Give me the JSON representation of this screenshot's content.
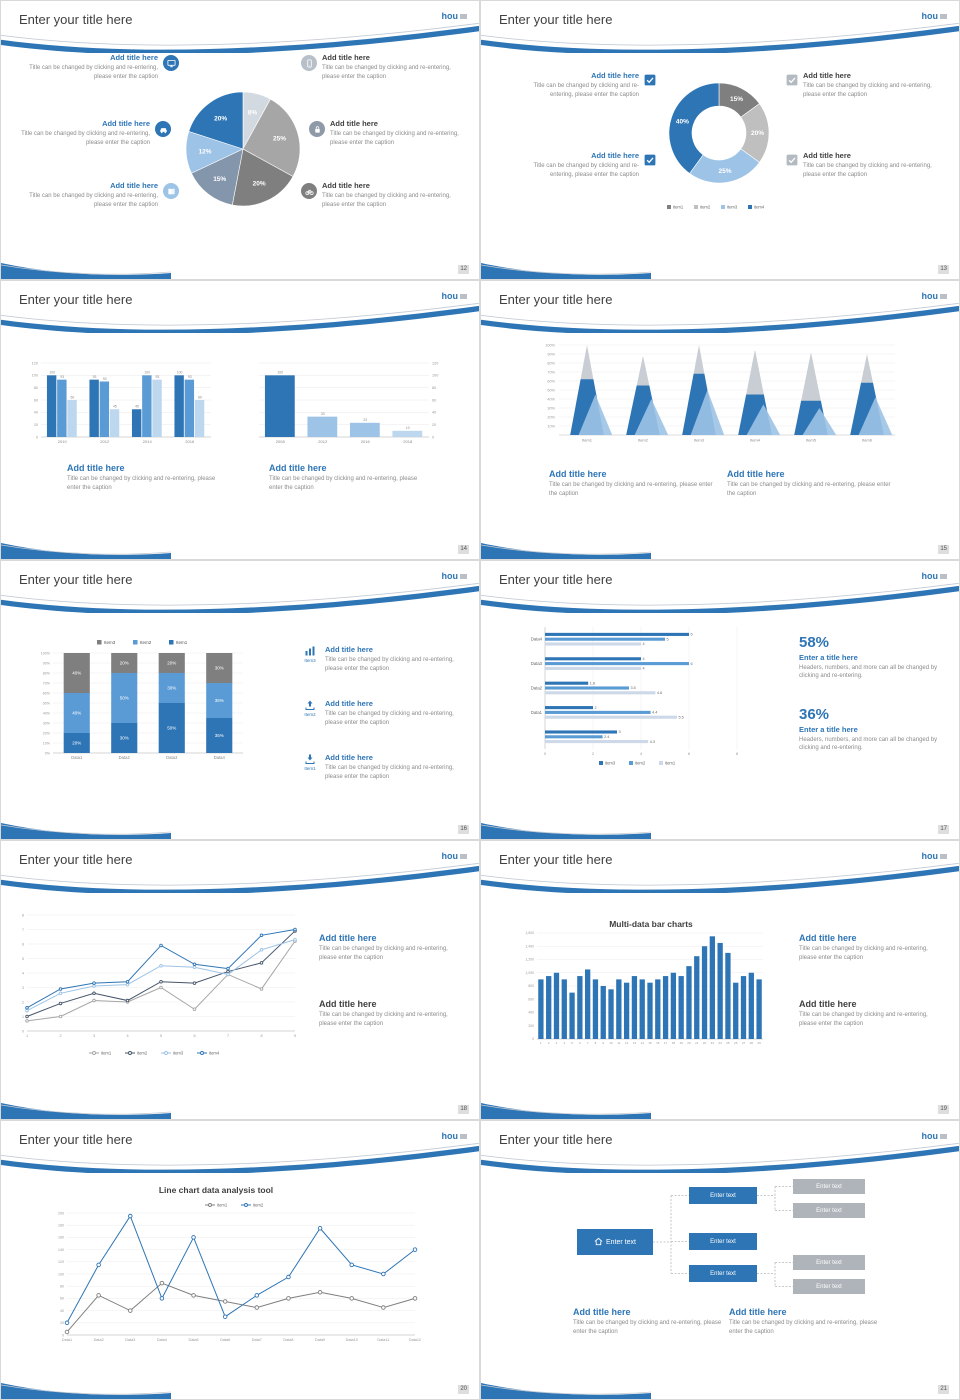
{
  "colors": {
    "accent": "#2e75b6",
    "accent_medium": "#5b9bd5",
    "accent_light": "#9dc3e6",
    "gray": "#7f7f7f",
    "light_gray": "#bfbfbf"
  },
  "common": {
    "title": "Enter your title here",
    "logo": "hou",
    "add_title": "Add title here",
    "caption": "Title can be changed by clicking and re-entering, please enter the caption"
  },
  "icons": {
    "s12": [
      "monitor",
      "phone",
      "car",
      "lock",
      "book",
      "bicycle"
    ],
    "s13": [
      "checkbox-checked"
    ],
    "s16": [
      "bar-chart",
      "upload",
      "download"
    ],
    "s21": [
      "home"
    ]
  },
  "slides": {
    "s12": {
      "page": "12"
    },
    "s13": {
      "page": "13"
    },
    "s14": {
      "page": "14"
    },
    "s15": {
      "page": "15"
    },
    "s16": {
      "page": "16",
      "icon_labels": [
        "Item3",
        "Item2",
        "Item1"
      ]
    },
    "s17": {
      "page": "17",
      "stat1": "58%",
      "stat2": "36%",
      "stat_title": "Enter a title here",
      "stat_caption": "Headers, numbers, and more can all be changed by clicking and re-entering."
    },
    "s18": {
      "page": "18"
    },
    "s19": {
      "page": "19"
    },
    "s20": {
      "page": "20"
    },
    "s21": {
      "page": "21",
      "node_text": "Enter text"
    }
  },
  "chart_data": [
    {
      "id": "c-pie",
      "type": "pie",
      "slide_page": "12",
      "values": [
        8,
        25,
        20,
        15,
        12,
        20
      ],
      "labels": [
        "8%",
        "25%",
        "20%",
        "15%",
        "12%",
        "20%"
      ],
      "colors": [
        "#d3d9e0",
        "#a6a6a6",
        "#7f7f7f",
        "#8496ab",
        "#9dc3e6",
        "#2e75b6"
      ]
    },
    {
      "id": "c-donut",
      "type": "pie",
      "slide_page": "13",
      "donut": true,
      "values": [
        15,
        20,
        25,
        40
      ],
      "labels": [
        "15%",
        "20%",
        "25%",
        "40%"
      ],
      "colors": [
        "#7f7f7f",
        "#bfbfbf",
        "#9dc3e6",
        "#2e75b6"
      ],
      "legend": [
        "item1",
        "item2",
        "item3",
        "item4"
      ]
    },
    {
      "id": "c-bars-grouped",
      "type": "bar",
      "slide_page": "14",
      "categories": [
        "2010",
        "2012",
        "2014",
        "2016"
      ],
      "series": [
        {
          "name": "series1",
          "color": "#2e75b6",
          "values": [
            100,
            93,
            45,
            100
          ]
        },
        {
          "name": "series2",
          "color": "#5b9bd5",
          "values": [
            93,
            90,
            100,
            93
          ]
        },
        {
          "name": "series3",
          "color": "#bdd7ee",
          "values": [
            60,
            45,
            93,
            60
          ]
        }
      ],
      "ylim": [
        0,
        120
      ],
      "ytick_step": 20,
      "data_labels": true
    },
    {
      "id": "c-bars-single",
      "type": "bar",
      "slide_page": "14",
      "categories": [
        "2008",
        "2012",
        "2016",
        "2018"
      ],
      "series": [
        {
          "name": "series1",
          "colors": [
            "#2e75b6",
            "#9dc3e6",
            "#9dc3e6",
            "#bdd7ee"
          ],
          "values": [
            100,
            33,
            23,
            10
          ]
        }
      ],
      "ylim": [
        0,
        120
      ],
      "ytick_step": 20,
      "axis_side": "right",
      "data_labels": true
    },
    {
      "id": "c-cones",
      "type": "bar",
      "variant": "cone-3d",
      "slide_page": "15",
      "categories": [
        "Item1",
        "Item2",
        "Item3",
        "Item4",
        "Item5",
        "Item6"
      ],
      "series": [
        {
          "name": "cone-back-gray",
          "color": "#c9ced4",
          "values": [
            100,
            88,
            100,
            95,
            92,
            90
          ]
        },
        {
          "name": "cone-blue",
          "color": "#2e75b6",
          "values": [
            62,
            55,
            68,
            45,
            38,
            58
          ]
        },
        {
          "name": "cone-front-light",
          "color": "#9dc3e6",
          "values": [
            45,
            40,
            50,
            34,
            30,
            42
          ]
        }
      ],
      "ylim": [
        0,
        100
      ],
      "ytick_step": 10,
      "ytick_suffix": "%"
    },
    {
      "id": "c-stacked",
      "type": "bar",
      "variant": "stacked-100",
      "slide_page": "16",
      "categories": [
        "Data1",
        "Data2",
        "Data3",
        "Data4"
      ],
      "series": [
        {
          "name": "Item1",
          "color": "#2e75b6",
          "values": [
            20,
            30,
            50,
            35
          ]
        },
        {
          "name": "Item2",
          "color": "#5b9bd5",
          "values": [
            40,
            50,
            30,
            35
          ]
        },
        {
          "name": "Item3",
          "color": "#7f7f7f",
          "values": [
            40,
            20,
            20,
            30
          ]
        }
      ],
      "legend": [
        "Item3",
        "Item2",
        "Item1"
      ],
      "legend_colors": [
        "#7f7f7f",
        "#5b9bd5",
        "#2e75b6"
      ],
      "ylim": [
        0,
        100
      ],
      "ytick_step": 10,
      "ytick_suffix": "%"
    },
    {
      "id": "c-hbars",
      "type": "bar",
      "variant": "horizontal",
      "slide_page": "17",
      "categories": [
        "Data4",
        "Data3",
        "Data2",
        "Data1",
        ""
      ],
      "groups": [
        [
          6,
          5,
          4
        ],
        [
          4,
          6,
          4
        ],
        [
          1.8,
          3.5,
          4.6
        ],
        [
          2,
          4.4,
          5.5
        ],
        [
          3,
          2.4,
          4.3
        ]
      ],
      "series_colors": [
        "#2e75b6",
        "#5b9bd5",
        "#cdd9e8"
      ],
      "legend": [
        "item3",
        "item2",
        "item1"
      ],
      "legend_colors": [
        "#2e75b6",
        "#5b9bd5",
        "#cdd9e8"
      ],
      "xlim": [
        0,
        8
      ],
      "xtick_step": 2,
      "data_labels": true
    },
    {
      "id": "c-line4",
      "type": "line",
      "slide_page": "18",
      "x": [
        "1",
        "2",
        "3",
        "4",
        "5",
        "6",
        "7",
        "8",
        "9"
      ],
      "series": [
        {
          "name": "item1",
          "color": "#a6a6a6",
          "values": [
            0.7,
            1.0,
            2.1,
            2.0,
            3.0,
            1.5,
            3.9,
            2.9,
            6.2
          ]
        },
        {
          "name": "item2",
          "color": "#44546a",
          "values": [
            1.0,
            1.9,
            2.6,
            2.1,
            3.4,
            3.3,
            4.1,
            4.7,
            6.9
          ]
        },
        {
          "name": "item3",
          "color": "#9dc3e6",
          "values": [
            1.4,
            2.6,
            3.1,
            3.2,
            4.5,
            4.4,
            3.9,
            5.6,
            6.3
          ]
        },
        {
          "name": "item4",
          "color": "#2e75b6",
          "values": [
            1.6,
            2.9,
            3.3,
            3.4,
            5.9,
            4.6,
            4.3,
            6.6,
            7.0
          ]
        }
      ],
      "ylim": [
        0,
        8
      ],
      "ytick_step": 1,
      "legend_position": "bottom"
    },
    {
      "id": "c-multibars",
      "type": "bar",
      "slide_page": "19",
      "title": "Multi-data bar charts",
      "categories": [
        "1",
        "2",
        "3",
        "4",
        "5",
        "6",
        "7",
        "8",
        "9",
        "10",
        "11",
        "12",
        "13",
        "14",
        "15",
        "16",
        "17",
        "18",
        "19",
        "20",
        "21",
        "22",
        "23",
        "24",
        "25",
        "26",
        "27",
        "28",
        "29"
      ],
      "values": [
        900,
        950,
        1000,
        900,
        700,
        950,
        1050,
        900,
        800,
        750,
        900,
        850,
        950,
        900,
        850,
        900,
        950,
        1000,
        950,
        1100,
        1250,
        1400,
        1550,
        1450,
        1300,
        850,
        950,
        1000,
        900
      ],
      "color": "#2e75b6",
      "ylim": [
        0,
        1600
      ],
      "ytick_step": 200
    },
    {
      "id": "c-line2",
      "type": "line",
      "slide_page": "20",
      "title": "Line chart data analysis tool",
      "x": [
        "Data1",
        "Data2",
        "Data3",
        "Data4",
        "Data5",
        "Data6",
        "Data7",
        "Data8",
        "Data9",
        "Data10",
        "Data11",
        "Data12"
      ],
      "series": [
        {
          "name": "item1",
          "color": "#7f7f7f",
          "values": [
            5,
            65,
            40,
            85,
            65,
            55,
            45,
            60,
            70,
            60,
            45,
            60
          ]
        },
        {
          "name": "item2",
          "color": "#2e75b6",
          "values": [
            20,
            115,
            195,
            60,
            160,
            30,
            65,
            95,
            175,
            115,
            100,
            140
          ]
        }
      ],
      "ylim": [
        0,
        200
      ],
      "ytick_step": 20,
      "legend_position": "top"
    }
  ]
}
